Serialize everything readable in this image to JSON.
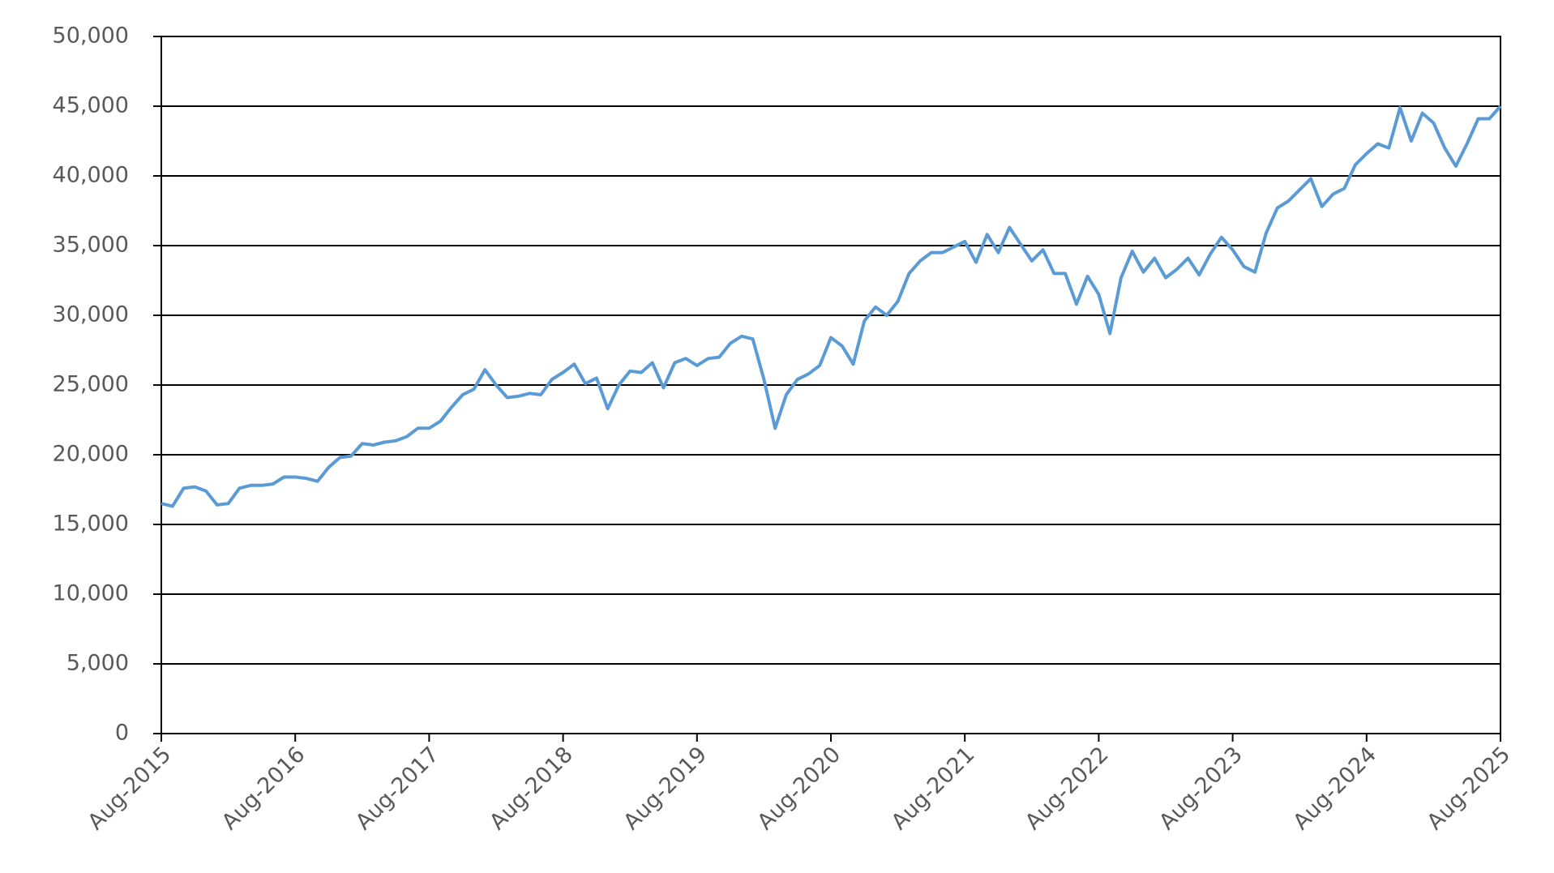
{
  "chart_data": {
    "type": "line",
    "x": [
      "Aug-2015",
      "Sep-2015",
      "Oct-2015",
      "Nov-2015",
      "Dec-2015",
      "Jan-2016",
      "Feb-2016",
      "Mar-2016",
      "Apr-2016",
      "May-2016",
      "Jun-2016",
      "Jul-2016",
      "Aug-2016",
      "Sep-2016",
      "Oct-2016",
      "Nov-2016",
      "Dec-2016",
      "Jan-2017",
      "Feb-2017",
      "Mar-2017",
      "Apr-2017",
      "May-2017",
      "Jun-2017",
      "Jul-2017",
      "Aug-2017",
      "Sep-2017",
      "Oct-2017",
      "Nov-2017",
      "Dec-2017",
      "Jan-2018",
      "Feb-2018",
      "Mar-2018",
      "Apr-2018",
      "May-2018",
      "Jun-2018",
      "Jul-2018",
      "Aug-2018",
      "Sep-2018",
      "Oct-2018",
      "Nov-2018",
      "Dec-2018",
      "Jan-2019",
      "Feb-2019",
      "Mar-2019",
      "Apr-2019",
      "May-2019",
      "Jun-2019",
      "Jul-2019",
      "Aug-2019",
      "Sep-2019",
      "Oct-2019",
      "Nov-2019",
      "Dec-2019",
      "Jan-2020",
      "Feb-2020",
      "Mar-2020",
      "Apr-2020",
      "May-2020",
      "Jun-2020",
      "Jul-2020",
      "Aug-2020",
      "Sep-2020",
      "Oct-2020",
      "Nov-2020",
      "Dec-2020",
      "Jan-2021",
      "Feb-2021",
      "Mar-2021",
      "Apr-2021",
      "May-2021",
      "Jun-2021",
      "Jul-2021",
      "Aug-2021",
      "Sep-2021",
      "Oct-2021",
      "Nov-2021",
      "Dec-2021",
      "Jan-2022",
      "Feb-2022",
      "Mar-2022",
      "Apr-2022",
      "May-2022",
      "Jun-2022",
      "Jul-2022",
      "Aug-2022",
      "Sep-2022",
      "Oct-2022",
      "Nov-2022",
      "Dec-2022",
      "Jan-2023",
      "Feb-2023",
      "Mar-2023",
      "Apr-2023",
      "May-2023",
      "Jun-2023",
      "Jul-2023",
      "Aug-2023",
      "Sep-2023",
      "Oct-2023",
      "Nov-2023",
      "Dec-2023",
      "Jan-2024",
      "Feb-2024",
      "Mar-2024",
      "Apr-2024",
      "May-2024",
      "Jun-2024",
      "Jul-2024",
      "Aug-2024",
      "Sep-2024",
      "Oct-2024",
      "Nov-2024",
      "Dec-2024",
      "Jan-2025",
      "Feb-2025",
      "Mar-2025",
      "Apr-2025",
      "May-2025",
      "Jun-2025",
      "Jul-2025",
      "Aug-2025"
    ],
    "values": [
      16500,
      16300,
      17600,
      17700,
      17400,
      16400,
      16500,
      17600,
      17800,
      17800,
      17900,
      18400,
      18400,
      18300,
      18100,
      19100,
      19800,
      19900,
      20800,
      20700,
      20900,
      21000,
      21300,
      21900,
      21900,
      22400,
      23400,
      24300,
      24700,
      26100,
      25000,
      24100,
      24200,
      24400,
      24300,
      25400,
      25900,
      26500,
      25100,
      25500,
      23300,
      25000,
      26000,
      25900,
      26600,
      24800,
      26600,
      26900,
      26400,
      26900,
      27000,
      28000,
      28500,
      28300,
      25400,
      21900,
      24300,
      25400,
      25800,
      26400,
      28400,
      27800,
      26500,
      29600,
      30600,
      30000,
      31000,
      33000,
      33900,
      34500,
      34500,
      34900,
      35300,
      33800,
      35800,
      34500,
      36300,
      35100,
      33900,
      34700,
      33000,
      33000,
      30800,
      32800,
      31500,
      28700,
      32700,
      34600,
      33100,
      34100,
      32700,
      33300,
      34100,
      32900,
      34400,
      35600,
      34700,
      33500,
      33100,
      35900,
      37700,
      38200,
      39000,
      39800,
      37800,
      38700,
      39100,
      40800,
      41600,
      42300,
      42000,
      44900,
      42500,
      44500,
      43800,
      42000,
      40700,
      42300,
      44100,
      44100,
      45000
    ],
    "color": "#5b9bd5",
    "xticks": [
      "Aug-2015",
      "Aug-2016",
      "Aug-2017",
      "Aug-2018",
      "Aug-2019",
      "Aug-2020",
      "Aug-2021",
      "Aug-2022",
      "Aug-2023",
      "Aug-2024",
      "Aug-2025"
    ],
    "ylim": [
      0,
      50000
    ],
    "yticks": [
      0,
      {
        "value": 5000,
        "label": "5,000"
      },
      {
        "value": 10000,
        "label": "10,000"
      },
      {
        "value": 15000,
        "label": "15,000"
      },
      {
        "value": 20000,
        "label": "20,000"
      },
      {
        "value": 25000,
        "label": "25,000"
      },
      {
        "value": 30000,
        "label": "30,000"
      },
      {
        "value": 35000,
        "label": "35,000"
      },
      {
        "value": 40000,
        "label": "40,000"
      },
      {
        "value": 45000,
        "label": "45,000"
      },
      {
        "value": 50000,
        "label": "50,000"
      }
    ],
    "grid": true
  }
}
